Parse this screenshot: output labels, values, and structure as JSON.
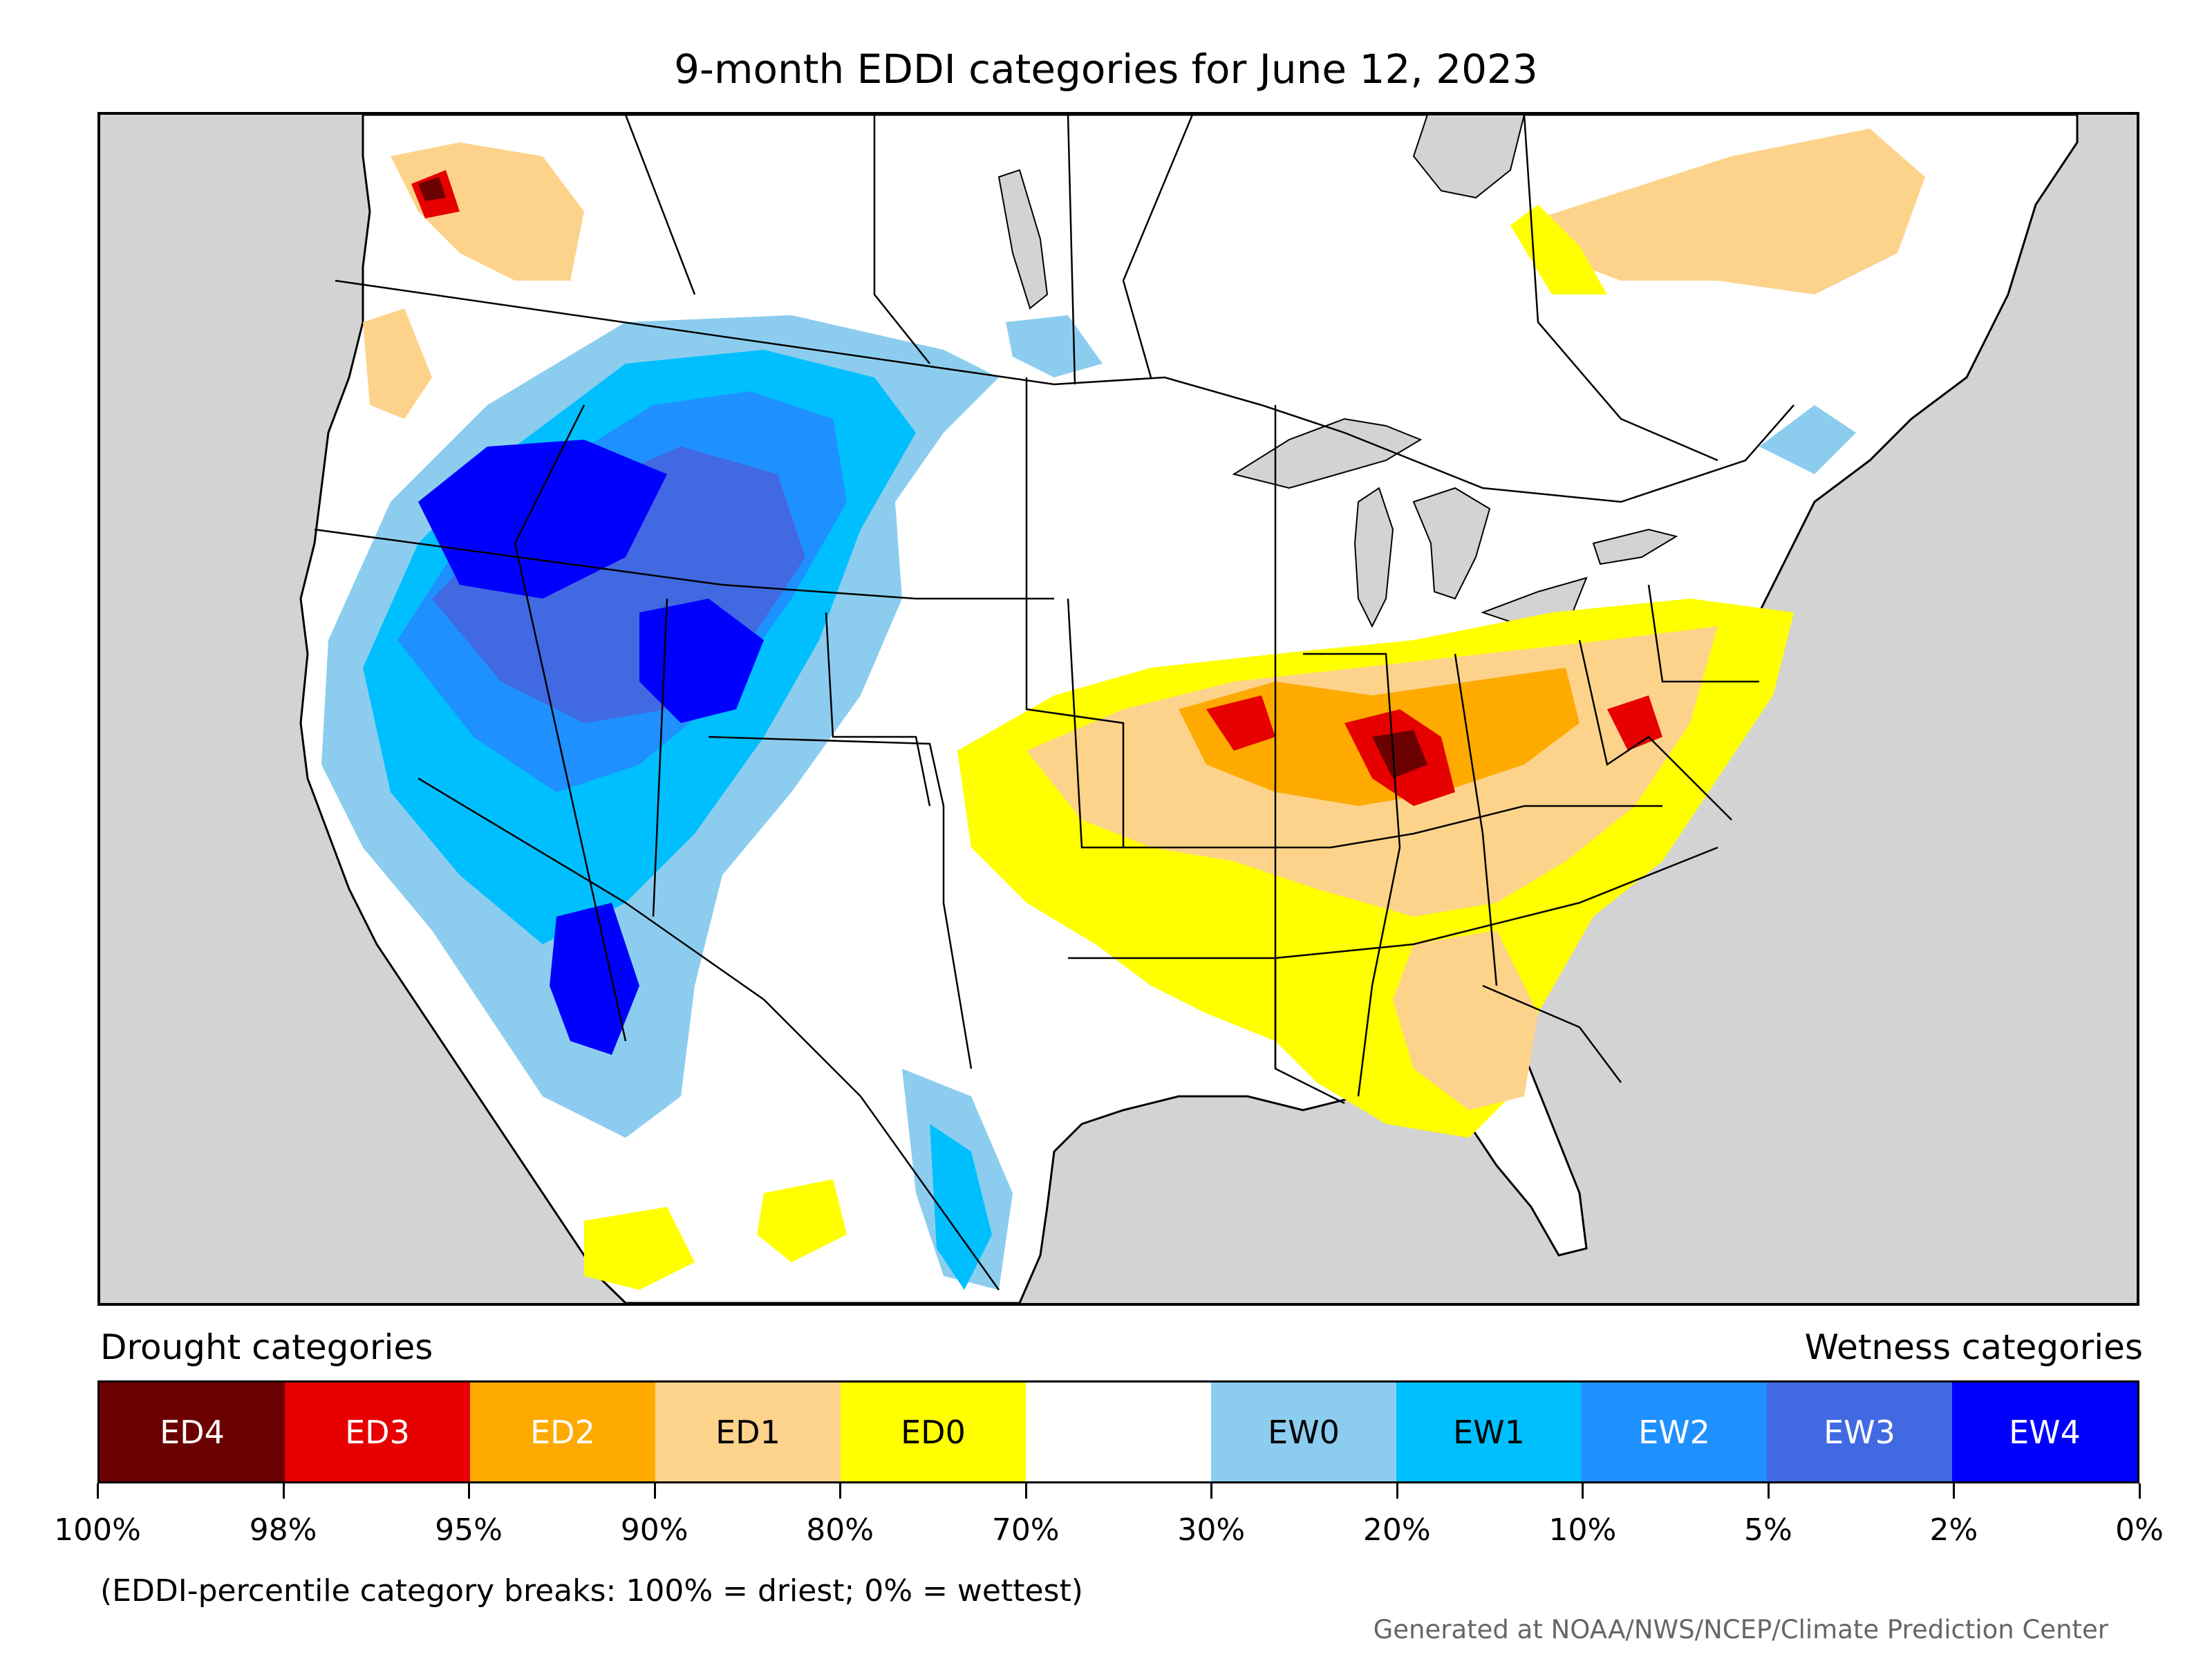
{
  "title": "9-month EDDI categories for June 12, 2023",
  "legend": {
    "drought_heading": "Drought categories",
    "wetness_heading": "Wetness categories",
    "categories": [
      {
        "label": "ED4",
        "color": "#6b0000",
        "text_color": "#ffffff"
      },
      {
        "label": "ED3",
        "color": "#e60000",
        "text_color": "#ffffff"
      },
      {
        "label": "ED2",
        "color": "#ffaa00",
        "text_color": "#ffffff"
      },
      {
        "label": "ED1",
        "color": "#fdd38b",
        "text_color": "#000000"
      },
      {
        "label": "ED0",
        "color": "#ffff00",
        "text_color": "#000000"
      },
      {
        "label": "",
        "color": "#ffffff",
        "text_color": "#000000"
      },
      {
        "label": "EW0",
        "color": "#8ccdef",
        "text_color": "#000000"
      },
      {
        "label": "EW1",
        "color": "#00bfff",
        "text_color": "#000000"
      },
      {
        "label": "EW2",
        "color": "#1e90ff",
        "text_color": "#ffffff"
      },
      {
        "label": "EW3",
        "color": "#4169e1",
        "text_color": "#ffffff"
      },
      {
        "label": "EW4",
        "color": "#0000ff",
        "text_color": "#ffffff"
      }
    ],
    "breaks": [
      "100%",
      "98%",
      "95%",
      "90%",
      "80%",
      "70%",
      "30%",
      "20%",
      "10%",
      "5%",
      "2%",
      "0%"
    ]
  },
  "caption": "(EDDI-percentile category breaks: 100% = driest; 0% = wettest)",
  "credit": "Generated at NOAA/NWS/NCEP/Climate Prediction Center",
  "map": {
    "background_color": "#d3d3d3",
    "land_color": "#ffffff",
    "border_color": "#000000"
  }
}
